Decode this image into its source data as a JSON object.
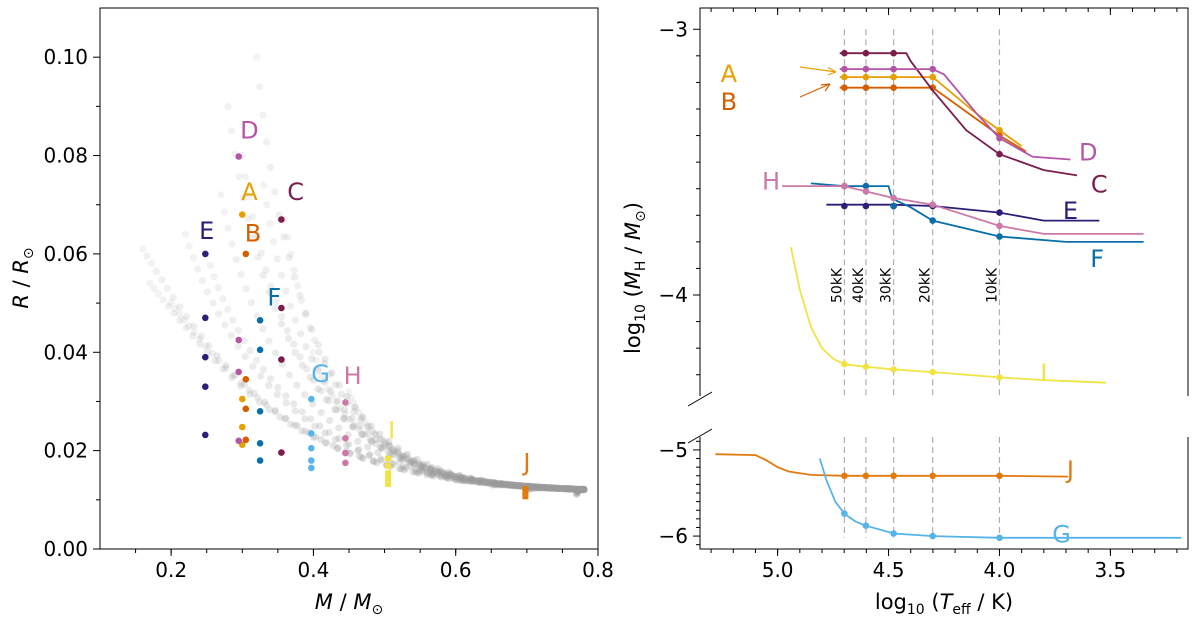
{
  "chart_data": [
    {
      "type": "scatter",
      "name": "radius-mass",
      "xlabel_main": "M",
      "xlabel_sub": "M",
      "xlabel_subscript": "⊙",
      "ylabel_main": "R",
      "ylabel_sub": "R",
      "ylabel_subscript": "⊙",
      "xlim": [
        0.1,
        0.8
      ],
      "ylim": [
        0.0,
        0.11
      ],
      "xticks": [
        0.2,
        0.4,
        0.6,
        0.8
      ],
      "xtick_labels": [
        "0.2",
        "0.4",
        "0.6",
        "0.8"
      ],
      "yticks": [
        0.0,
        0.02,
        0.04,
        0.06,
        0.08,
        0.1
      ],
      "ytick_labels": [
        "0.00",
        "0.02",
        "0.04",
        "0.06",
        "0.08",
        "0.10"
      ],
      "background_tracks": [
        {
          "mass": 0.16,
          "r_max": 0.061
        },
        {
          "mass": 0.17,
          "r_max": 0.054
        },
        {
          "mass": 0.2,
          "r_max": 0.05
        },
        {
          "mass": 0.22,
          "r_max": 0.064
        },
        {
          "mass": 0.25,
          "r_max": 0.06
        },
        {
          "mass": 0.27,
          "r_max": 0.072
        },
        {
          "mass": 0.28,
          "r_max": 0.09
        },
        {
          "mass": 0.3,
          "r_max": 0.08
        },
        {
          "mass": 0.32,
          "r_max": 0.1
        },
        {
          "mass": 0.33,
          "r_max": 0.074
        },
        {
          "mass": 0.36,
          "r_max": 0.067
        },
        {
          "mass": 0.4,
          "r_max": 0.04
        },
        {
          "mass": 0.45,
          "r_max": 0.032
        },
        {
          "mass": 0.5,
          "r_max": 0.022
        },
        {
          "mass": 0.55,
          "r_max": 0.016
        },
        {
          "mass": 0.6,
          "r_max": 0.014
        },
        {
          "mass": 0.65,
          "r_max": 0.013
        },
        {
          "mass": 0.7,
          "r_max": 0.012
        },
        {
          "mass": 0.77,
          "r_max": 0.011
        }
      ],
      "models": [
        {
          "label": "A",
          "color": "#e69f00",
          "mass": 0.3,
          "radii": [
            0.068,
            0.0305,
            0.0248,
            0.0212
          ],
          "label_pos": [
            0.31,
            0.071
          ]
        },
        {
          "label": "B",
          "color": "#d55e00",
          "mass": 0.305,
          "radii": [
            0.06,
            0.0345,
            0.0285,
            0.0222
          ],
          "label_pos": [
            0.315,
            0.0625
          ]
        },
        {
          "label": "C",
          "color": "#7b1d4d",
          "mass": 0.355,
          "radii": [
            0.067,
            0.049,
            0.0385,
            0.0196
          ],
          "label_pos": [
            0.375,
            0.071
          ]
        },
        {
          "label": "D",
          "color": "#b455a8",
          "mass": 0.295,
          "radii": [
            0.0798,
            0.0425,
            0.036,
            0.022
          ],
          "label_pos": [
            0.31,
            0.0835
          ]
        },
        {
          "label": "E",
          "color": "#2c1f78",
          "mass": 0.248,
          "radii": [
            0.06,
            0.047,
            0.039,
            0.033,
            0.0232
          ],
          "label_pos": [
            0.25,
            0.063
          ]
        },
        {
          "label": "F",
          "color": "#0a6fa8",
          "mass": 0.325,
          "radii": [
            0.0465,
            0.0405,
            0.028,
            0.0215,
            0.018
          ],
          "label_pos": [
            0.345,
            0.0495
          ]
        },
        {
          "label": "G",
          "color": "#56b4e9",
          "mass": 0.397,
          "radii": [
            0.0305,
            0.0235,
            0.0205,
            0.018,
            0.0165
          ],
          "label_pos": [
            0.41,
            0.034
          ]
        },
        {
          "label": "H",
          "color": "#cc79a7",
          "mass": 0.445,
          "radii": [
            0.0298,
            0.0225,
            0.0195,
            0.0175
          ],
          "label_pos": [
            0.455,
            0.0335
          ]
        },
        {
          "label": "I",
          "color": "#f0e442",
          "mass": 0.505,
          "radii": [
            0.019,
            0.0175,
            0.016,
            0.015,
            0.0138
          ],
          "label_pos": [
            0.51,
            0.0225
          ]
        },
        {
          "label": "J",
          "color": "#e07b10",
          "mass": 0.698,
          "radii": [
            0.0128,
            0.012,
            0.0113
          ],
          "label_pos": [
            0.7,
            0.016
          ]
        }
      ]
    },
    {
      "type": "line",
      "name": "hydrogen-mass-vs-teff",
      "xlabel_prefix": "log",
      "xlabel_base": "10",
      "xlabel_var": "T",
      "xlabel_var_sub": "eff",
      "xlabel_unit": "K",
      "ylabel_prefix": "log",
      "ylabel_base": "10",
      "ylabel_var": "M",
      "ylabel_var_sub": "H",
      "ylabel_unit": "M",
      "ylabel_unit_sub": "⊙",
      "xlim": [
        5.35,
        3.15
      ],
      "ylim_upper": [
        -4.38,
        -2.92
      ],
      "ylim_lower": [
        -6.15,
        -4.85
      ],
      "xticks": [
        5.0,
        4.5,
        4.0,
        3.5
      ],
      "xtick_labels": [
        "5.0",
        "4.5",
        "4.0",
        "3.5"
      ],
      "yticks_upper": [
        -3,
        -4
      ],
      "ytick_labels_upper": [
        "−3",
        "−4"
      ],
      "yticks_lower": [
        -5,
        -6
      ],
      "ytick_labels_lower": [
        "−5",
        "−6"
      ],
      "temperature_markers": [
        {
          "label": "50kK",
          "logT": 4.699
        },
        {
          "label": "40kK",
          "logT": 4.602
        },
        {
          "label": "30kK",
          "logT": 4.477
        },
        {
          "label": "20kK",
          "logT": 4.301
        },
        {
          "label": "10kK",
          "logT": 4.0
        }
      ],
      "series": [
        {
          "name": "A",
          "color": "#e69f00",
          "panel": "upper",
          "x": [
            4.72,
            4.7,
            4.5,
            4.301,
            4.1,
            4.0,
            3.9
          ],
          "y": [
            -3.18,
            -3.18,
            -3.18,
            -3.18,
            -3.32,
            -3.38,
            -3.44
          ],
          "markers": [
            [
              4.699,
              -3.18
            ],
            [
              4.602,
              -3.18
            ],
            [
              4.477,
              -3.18
            ],
            [
              4.301,
              -3.18
            ],
            [
              4.0,
              -3.38
            ]
          ]
        },
        {
          "name": "B",
          "color": "#d55e00",
          "panel": "upper",
          "x": [
            4.72,
            4.7,
            4.5,
            4.301,
            4.1,
            4.0,
            3.88
          ],
          "y": [
            -3.22,
            -3.22,
            -3.22,
            -3.22,
            -3.34,
            -3.4,
            -3.46
          ],
          "markers": [
            [
              4.699,
              -3.22
            ],
            [
              4.602,
              -3.22
            ],
            [
              4.477,
              -3.22
            ],
            [
              4.301,
              -3.22
            ],
            [
              4.0,
              -3.4
            ]
          ]
        },
        {
          "name": "C",
          "color": "#7b1d4d",
          "panel": "upper",
          "x": [
            4.72,
            4.699,
            4.477,
            4.42,
            4.4,
            4.301,
            4.15,
            4.0,
            3.8,
            3.65
          ],
          "y": [
            -3.09,
            -3.09,
            -3.09,
            -3.09,
            -3.12,
            -3.23,
            -3.38,
            -3.47,
            -3.53,
            -3.55
          ],
          "markers": [
            [
              4.699,
              -3.09
            ],
            [
              4.602,
              -3.09
            ],
            [
              4.477,
              -3.09
            ],
            [
              4.0,
              -3.47
            ]
          ]
        },
        {
          "name": "D",
          "color": "#b455a8",
          "panel": "upper",
          "x": [
            4.72,
            4.699,
            4.301,
            4.25,
            4.1,
            4.0,
            3.85,
            3.68
          ],
          "y": [
            -3.15,
            -3.15,
            -3.15,
            -3.17,
            -3.32,
            -3.41,
            -3.48,
            -3.49
          ],
          "markers": [
            [
              4.699,
              -3.15
            ],
            [
              4.602,
              -3.15
            ],
            [
              4.477,
              -3.15
            ],
            [
              4.301,
              -3.15
            ],
            [
              4.0,
              -3.41
            ]
          ]
        },
        {
          "name": "E",
          "color": "#2c1f78",
          "panel": "upper",
          "x": [
            4.78,
            4.699,
            4.477,
            4.301,
            4.0,
            3.8,
            3.55
          ],
          "y": [
            -3.66,
            -3.66,
            -3.66,
            -3.665,
            -3.69,
            -3.72,
            -3.72
          ],
          "markers": [
            [
              4.699,
              -3.665
            ],
            [
              4.602,
              -3.665
            ],
            [
              4.477,
              -3.665
            ],
            [
              4.301,
              -3.665
            ],
            [
              4.0,
              -3.69
            ]
          ]
        },
        {
          "name": "F",
          "color": "#0a6fa8",
          "panel": "upper",
          "x": [
            4.85,
            4.699,
            4.602,
            4.5,
            4.49,
            4.477,
            4.4,
            4.301,
            4.0,
            3.7,
            3.35
          ],
          "y": [
            -3.58,
            -3.59,
            -3.59,
            -3.59,
            -3.62,
            -3.64,
            -3.67,
            -3.72,
            -3.78,
            -3.8,
            -3.8
          ],
          "markers": [
            [
              4.699,
              -3.59
            ],
            [
              4.602,
              -3.59
            ],
            [
              4.477,
              -3.665
            ],
            [
              4.301,
              -3.72
            ],
            [
              4.0,
              -3.78
            ]
          ]
        },
        {
          "name": "H",
          "color": "#cc79a7",
          "panel": "upper",
          "x": [
            4.98,
            4.699,
            4.602,
            4.477,
            4.301,
            4.0,
            3.8,
            3.35
          ],
          "y": [
            -3.59,
            -3.59,
            -3.61,
            -3.635,
            -3.66,
            -3.74,
            -3.77,
            -3.77
          ],
          "markers": [
            [
              4.699,
              -3.59
            ],
            [
              4.602,
              -3.61
            ],
            [
              4.477,
              -3.635
            ],
            [
              4.301,
              -3.66
            ],
            [
              4.0,
              -3.74
            ]
          ]
        },
        {
          "name": "I",
          "color": "#f0e442",
          "panel": "upper",
          "x": [
            4.94,
            4.9,
            4.85,
            4.8,
            4.75,
            4.699,
            4.602,
            4.477,
            4.301,
            4.0,
            3.8,
            3.52
          ],
          "y": [
            -3.82,
            -3.98,
            -4.12,
            -4.2,
            -4.24,
            -4.26,
            -4.27,
            -4.28,
            -4.29,
            -4.31,
            -4.32,
            -4.33
          ],
          "markers": [
            [
              4.699,
              -4.26
            ],
            [
              4.602,
              -4.27
            ],
            [
              4.477,
              -4.28
            ],
            [
              4.301,
              -4.29
            ],
            [
              4.0,
              -4.31
            ]
          ]
        },
        {
          "name": "J",
          "color": "#e07b10",
          "panel": "lower",
          "x": [
            5.28,
            5.1,
            5.05,
            5.0,
            4.95,
            4.85,
            4.699,
            4.602,
            4.477,
            4.301,
            4.0,
            3.69
          ],
          "y": [
            -5.05,
            -5.06,
            -5.12,
            -5.2,
            -5.25,
            -5.29,
            -5.3,
            -5.3,
            -5.3,
            -5.3,
            -5.3,
            -5.31
          ],
          "markers": [
            [
              4.699,
              -5.3
            ],
            [
              4.602,
              -5.3
            ],
            [
              4.477,
              -5.3
            ],
            [
              4.301,
              -5.3
            ],
            [
              4.0,
              -5.3
            ]
          ]
        },
        {
          "name": "G",
          "color": "#56b4e9",
          "panel": "lower",
          "x": [
            4.81,
            4.78,
            4.74,
            4.699,
            4.65,
            4.602,
            4.477,
            4.301,
            4.0,
            3.5,
            3.18
          ],
          "y": [
            -5.1,
            -5.35,
            -5.6,
            -5.74,
            -5.83,
            -5.88,
            -5.97,
            -6.0,
            -6.02,
            -6.02,
            -6.02
          ],
          "markers": [
            [
              4.699,
              -5.74
            ],
            [
              4.602,
              -5.88
            ],
            [
              4.477,
              -5.97
            ],
            [
              4.301,
              -6.0
            ],
            [
              4.0,
              -6.02
            ]
          ]
        }
      ],
      "labels": [
        {
          "text": "A",
          "color": "#e69f00",
          "x": 5.22,
          "y": -3.165
        },
        {
          "text": "B",
          "color": "#d55e00",
          "x": 5.22,
          "y": -3.27
        },
        {
          "text": "C",
          "color": "#7b1d4d",
          "x": 3.55,
          "y": -3.58,
          "panel": "upper"
        },
        {
          "text": "D",
          "color": "#b455a8",
          "x": 3.6,
          "y": -3.46,
          "panel": "upper"
        },
        {
          "text": "E",
          "color": "#2c1f78",
          "x": 3.68,
          "y": -3.68,
          "panel": "upper"
        },
        {
          "text": "F",
          "color": "#0a6fa8",
          "x": 3.56,
          "y": -3.86,
          "panel": "upper"
        },
        {
          "text": "G",
          "color": "#56b4e9",
          "x": 3.72,
          "y": -5.97,
          "panel": "lower"
        },
        {
          "text": "H",
          "color": "#cc79a7",
          "x": 5.03,
          "y": -3.57,
          "panel": "upper"
        },
        {
          "text": "I",
          "color": "#f0e442",
          "x": 3.8,
          "y": -4.29,
          "panel": "upper"
        },
        {
          "text": "J",
          "color": "#e07b10",
          "x": 3.68,
          "y": -5.22,
          "panel": "lower"
        }
      ]
    }
  ]
}
